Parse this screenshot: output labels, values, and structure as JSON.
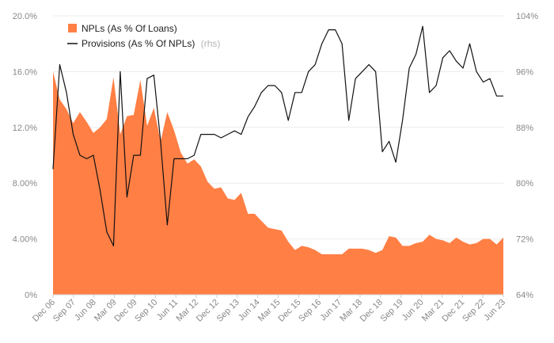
{
  "chart_data": {
    "type": "area+line",
    "title": "",
    "x_tick_labels": [
      "Dec 06",
      "Sep 07",
      "Jun 08",
      "Mar 09",
      "Dec 09",
      "Sep 10",
      "Jun 11",
      "Mar 12",
      "Dec 12",
      "Sep 13",
      "Jun 14",
      "Mar 15",
      "Dec 15",
      "Sep 16",
      "Jun 17",
      "Mar 18",
      "Dec 18",
      "Sep 19",
      "Jun 20",
      "Mar 21",
      "Dec 21",
      "Sep 22",
      "Jun 23"
    ],
    "left_axis": {
      "ticks": [
        "20.0%",
        "16.0%",
        "12.0%",
        "8.00%",
        "4.00%",
        "0%"
      ],
      "ylim": [
        0,
        20
      ]
    },
    "right_axis": {
      "ticks": [
        "104%",
        "96%",
        "88%",
        "80%",
        "72%",
        "64%"
      ],
      "ylim": [
        64,
        104
      ]
    },
    "colors": {
      "area": "#ff7f45",
      "line": "#111111"
    },
    "legend": {
      "area_label": "NPLs (As % Of Loans)",
      "line_label": "Provisions (As % Of NPLs)",
      "line_suffix": "(rhs)"
    },
    "series": [
      {
        "name": "NPLs (As % Of Loans)",
        "axis": "left",
        "type": "area",
        "x": [
          0,
          1,
          2,
          3,
          4,
          5,
          6,
          7,
          8,
          9,
          10,
          11,
          12,
          13,
          14,
          15,
          16,
          17,
          18,
          19,
          20,
          21,
          22,
          23,
          24,
          25,
          26,
          27,
          28,
          29,
          30,
          31,
          32,
          33,
          34,
          35,
          36,
          37,
          38,
          39,
          40,
          41,
          42,
          43,
          44,
          45,
          46,
          47,
          48,
          49,
          50,
          51,
          52,
          53,
          54,
          55,
          56,
          57,
          58,
          59,
          60,
          61,
          62,
          63,
          64,
          65,
          66,
          67
        ],
        "values": [
          16.0,
          14.0,
          13.3,
          12.3,
          13.1,
          12.4,
          11.6,
          12.0,
          12.6,
          15.6,
          11.5,
          12.8,
          12.9,
          15.4,
          12.1,
          13.4,
          11.0,
          13.1,
          11.8,
          10.2,
          9.4,
          9.7,
          9.2,
          8.1,
          7.6,
          7.7,
          6.9,
          6.8,
          7.3,
          5.8,
          5.8,
          5.3,
          4.8,
          4.7,
          4.6,
          3.8,
          3.2,
          3.5,
          3.4,
          3.2,
          2.9,
          2.9,
          2.9,
          2.9,
          3.3,
          3.3,
          3.3,
          3.2,
          3.0,
          3.2,
          4.2,
          4.1,
          3.5,
          3.5,
          3.7,
          3.8,
          4.3,
          4.0,
          3.9,
          3.7,
          4.1,
          3.8,
          3.6,
          3.7,
          4.0,
          4.0,
          3.6,
          4.1
        ]
      },
      {
        "name": "Provisions (As % Of NPLs)",
        "axis": "right",
        "type": "line",
        "x": [
          0,
          1,
          2,
          3,
          4,
          5,
          6,
          7,
          8,
          9,
          10,
          11,
          12,
          13,
          14,
          15,
          16,
          17,
          18,
          19,
          20,
          21,
          22,
          23,
          24,
          25,
          26,
          27,
          28,
          29,
          30,
          31,
          32,
          33,
          34,
          35,
          36,
          37,
          38,
          39,
          40,
          41,
          42,
          43,
          44,
          45,
          46,
          47,
          48,
          49,
          50,
          51,
          52,
          53,
          54,
          55,
          56,
          57,
          58,
          59,
          60,
          61,
          62,
          63,
          64,
          65,
          66,
          67
        ],
        "values": [
          82,
          97,
          93,
          87,
          84,
          83.5,
          84,
          79,
          73,
          71,
          96,
          78,
          84,
          84,
          95,
          95.5,
          86,
          74,
          83.5,
          83.5,
          83.5,
          84,
          87,
          87,
          87,
          86.5,
          87,
          87.5,
          87,
          89.5,
          91,
          93,
          94,
          94,
          93,
          89,
          93,
          93,
          96,
          97,
          100,
          102,
          102,
          100,
          89,
          95,
          96,
          97,
          96,
          84.5,
          86,
          83,
          89,
          96.5,
          98.5,
          102.5,
          93,
          94,
          98,
          99,
          97.5,
          96.5,
          100,
          96,
          94.5,
          95,
          92.5,
          92.5
        ]
      }
    ]
  }
}
